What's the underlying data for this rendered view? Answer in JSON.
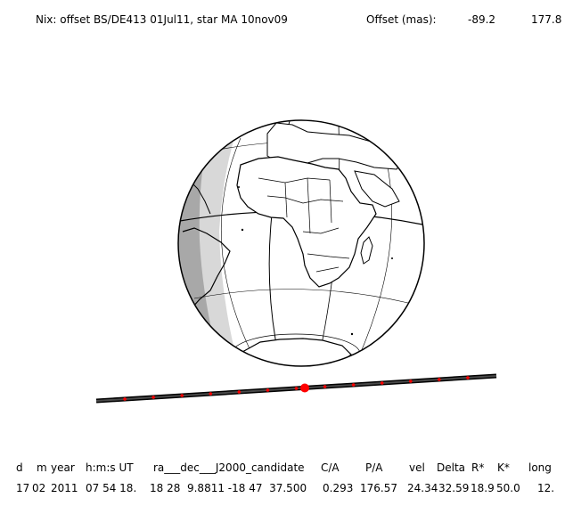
{
  "header": {
    "title": "Nix: offset BS/DE413 01Jul11, star MA 10nov09",
    "offset_label": "Offset (mas):",
    "offset_ra": "-89.2",
    "offset_dec": "177.8"
  },
  "table": {
    "columns": [
      "d",
      "m",
      "year",
      "h:m:s UT",
      "ra___dec___J2000_candidate",
      "C/A",
      "P/A",
      "vel",
      "Delta",
      "R*",
      "K*",
      "long"
    ],
    "values": [
      "17",
      "02",
      "2011",
      "07 54 18.",
      "18 28  9.8811 -18 47  37.500",
      "0.293",
      "176.57",
      "24.34",
      "32.59",
      "18.9",
      "50.0",
      "12."
    ]
  },
  "colors": {
    "night": "#d8d8d8",
    "twilight": "#a8a8a8",
    "track_outer": "#000000",
    "track_inner": "#4a4a4a",
    "track_marker": "#ff0000"
  }
}
